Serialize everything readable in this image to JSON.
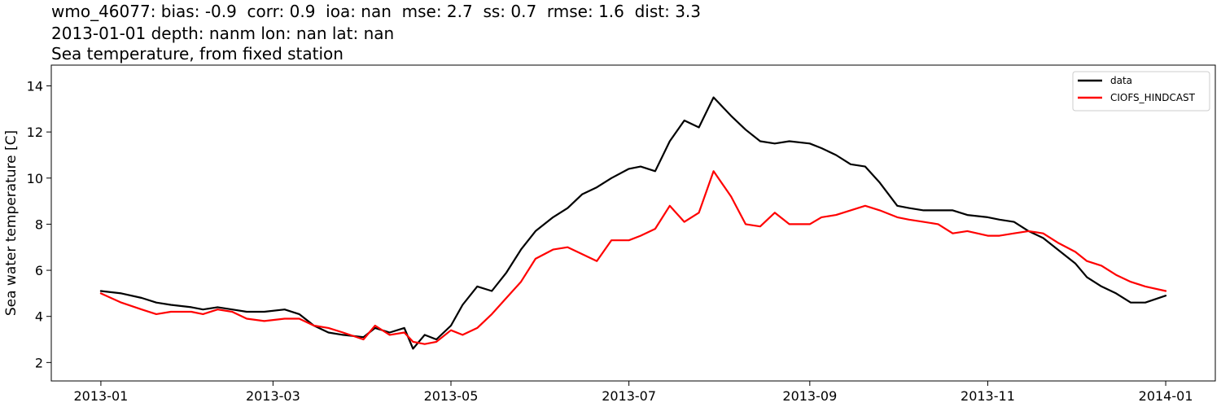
{
  "title": {
    "line1": "wmo_46077: bias: -0.9  corr: 0.9  ioa: nan  mse: 2.7  ss: 0.7  rmse: 1.6  dist: 3.3",
    "line2": "2013-01-01 depth: nanm lon: nan lat: nan",
    "line3": "Sea temperature, from fixed station"
  },
  "chart_data": {
    "type": "line",
    "ylabel": "Sea water temperature [C]",
    "xlabel": "",
    "xlim": [
      "2012-12-15",
      "2014-01-18"
    ],
    "ylim": [
      1.2,
      14.9
    ],
    "x_ticks": [
      "2013-01",
      "2013-03",
      "2013-05",
      "2013-07",
      "2013-09",
      "2013-11",
      "2014-01"
    ],
    "y_ticks": [
      2,
      4,
      6,
      8,
      10,
      12,
      14
    ],
    "grid": false,
    "legend_position": "top-right",
    "series": [
      {
        "name": "data",
        "color": "#000000",
        "x": [
          "2013-01-01",
          "2013-01-08",
          "2013-01-15",
          "2013-01-20",
          "2013-01-25",
          "2013-02-01",
          "2013-02-05",
          "2013-02-10",
          "2013-02-15",
          "2013-02-20",
          "2013-02-26",
          "2013-03-05",
          "2013-03-10",
          "2013-03-15",
          "2013-03-20",
          "2013-03-25",
          "2013-04-01",
          "2013-04-05",
          "2013-04-10",
          "2013-04-15",
          "2013-04-18",
          "2013-04-22",
          "2013-04-26",
          "2013-05-01",
          "2013-05-05",
          "2013-05-10",
          "2013-05-15",
          "2013-05-20",
          "2013-05-25",
          "2013-05-30",
          "2013-06-05",
          "2013-06-10",
          "2013-06-15",
          "2013-06-20",
          "2013-06-25",
          "2013-07-01",
          "2013-07-05",
          "2013-07-10",
          "2013-07-15",
          "2013-07-20",
          "2013-07-25",
          "2013-07-30",
          "2013-08-05",
          "2013-08-10",
          "2013-08-15",
          "2013-08-20",
          "2013-08-25",
          "2013-09-01",
          "2013-09-05",
          "2013-09-10",
          "2013-09-15",
          "2013-09-20",
          "2013-09-25",
          "2013-10-01",
          "2013-10-05",
          "2013-10-10",
          "2013-10-15",
          "2013-10-20",
          "2013-10-25",
          "2013-11-01",
          "2013-11-05",
          "2013-11-10",
          "2013-11-15",
          "2013-11-20",
          "2013-11-25",
          "2013-12-01",
          "2013-12-05",
          "2013-12-10",
          "2013-12-15",
          "2013-12-20",
          "2013-12-25",
          "2014-01-01"
        ],
        "y": [
          5.1,
          5.0,
          4.8,
          4.6,
          4.5,
          4.4,
          4.3,
          4.4,
          4.3,
          4.2,
          4.2,
          4.3,
          4.1,
          3.6,
          3.3,
          3.2,
          3.1,
          3.5,
          3.3,
          3.5,
          2.6,
          3.2,
          3.0,
          3.6,
          4.5,
          5.3,
          5.1,
          5.9,
          6.9,
          7.7,
          8.3,
          8.7,
          9.3,
          9.6,
          10.0,
          10.4,
          10.5,
          10.3,
          11.6,
          12.5,
          12.2,
          13.5,
          12.7,
          12.1,
          11.6,
          11.5,
          11.6,
          11.5,
          11.3,
          11.0,
          10.6,
          10.5,
          9.8,
          8.8,
          8.7,
          8.6,
          8.6,
          8.6,
          8.4,
          8.3,
          8.2,
          8.1,
          7.7,
          7.4,
          6.9,
          6.3,
          5.7,
          5.3,
          5.0,
          4.6,
          4.6,
          4.9
        ]
      },
      {
        "name": "CIOFS_HINDCAST",
        "color": "#ff0000",
        "x": [
          "2013-01-01",
          "2013-01-08",
          "2013-01-15",
          "2013-01-20",
          "2013-01-25",
          "2013-02-01",
          "2013-02-05",
          "2013-02-10",
          "2013-02-15",
          "2013-02-20",
          "2013-02-26",
          "2013-03-05",
          "2013-03-10",
          "2013-03-15",
          "2013-03-20",
          "2013-03-25",
          "2013-04-01",
          "2013-04-05",
          "2013-04-10",
          "2013-04-15",
          "2013-04-18",
          "2013-04-22",
          "2013-04-26",
          "2013-05-01",
          "2013-05-05",
          "2013-05-10",
          "2013-05-15",
          "2013-05-20",
          "2013-05-25",
          "2013-05-30",
          "2013-06-05",
          "2013-06-10",
          "2013-06-15",
          "2013-06-20",
          "2013-06-25",
          "2013-07-01",
          "2013-07-05",
          "2013-07-10",
          "2013-07-15",
          "2013-07-20",
          "2013-07-25",
          "2013-07-30",
          "2013-08-05",
          "2013-08-10",
          "2013-08-15",
          "2013-08-20",
          "2013-08-25",
          "2013-09-01",
          "2013-09-05",
          "2013-09-10",
          "2013-09-15",
          "2013-09-20",
          "2013-09-25",
          "2013-10-01",
          "2013-10-05",
          "2013-10-10",
          "2013-10-15",
          "2013-10-20",
          "2013-10-25",
          "2013-11-01",
          "2013-11-05",
          "2013-11-10",
          "2013-11-15",
          "2013-11-20",
          "2013-11-25",
          "2013-12-01",
          "2013-12-05",
          "2013-12-10",
          "2013-12-15",
          "2013-12-20",
          "2013-12-25",
          "2014-01-01"
        ],
        "y": [
          5.0,
          4.6,
          4.3,
          4.1,
          4.2,
          4.2,
          4.1,
          4.3,
          4.2,
          3.9,
          3.8,
          3.9,
          3.9,
          3.6,
          3.5,
          3.3,
          3.0,
          3.6,
          3.2,
          3.3,
          2.9,
          2.8,
          2.9,
          3.4,
          3.2,
          3.5,
          4.1,
          4.8,
          5.5,
          6.5,
          6.9,
          7.0,
          6.7,
          6.4,
          7.3,
          7.3,
          7.5,
          7.8,
          8.8,
          8.1,
          8.5,
          10.3,
          9.2,
          8.0,
          7.9,
          8.5,
          8.0,
          8.0,
          8.3,
          8.4,
          8.6,
          8.8,
          8.6,
          8.3,
          8.2,
          8.1,
          8.0,
          7.6,
          7.7,
          7.5,
          7.5,
          7.6,
          7.7,
          7.6,
          7.2,
          6.8,
          6.4,
          6.2,
          5.8,
          5.5,
          5.3,
          5.1
        ]
      }
    ]
  }
}
